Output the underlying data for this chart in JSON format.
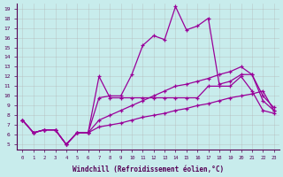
{
  "xlabel": "Windchill (Refroidissement éolien,°C)",
  "background_color": "#c8ecec",
  "grid_color": "#b0b0b0",
  "line_color": "#990099",
  "xlim": [
    -0.5,
    23.5
  ],
  "ylim": [
    4.5,
    19.5
  ],
  "xticks": [
    0,
    1,
    2,
    3,
    4,
    5,
    6,
    7,
    8,
    9,
    10,
    11,
    12,
    13,
    14,
    15,
    16,
    17,
    18,
    19,
    20,
    21,
    22,
    23
  ],
  "yticks": [
    5,
    6,
    7,
    8,
    9,
    10,
    11,
    12,
    13,
    14,
    15,
    16,
    17,
    18,
    19
  ],
  "series1_peak": [
    7.5,
    6.2,
    6.5,
    6.5,
    5.0,
    6.2,
    6.2,
    9.8,
    10.0,
    10.0,
    12.2,
    15.2,
    16.2,
    15.8,
    19.2,
    16.8,
    17.2,
    18.0,
    11.2,
    11.5,
    12.2,
    12.2,
    9.5,
    8.5
  ],
  "series2_mid": [
    7.5,
    6.2,
    6.5,
    6.5,
    5.0,
    6.2,
    6.2,
    12.0,
    9.8,
    9.8,
    9.8,
    9.8,
    9.8,
    9.8,
    9.8,
    9.8,
    9.8,
    11.0,
    11.0,
    11.0,
    12.0,
    10.5,
    8.5,
    8.2
  ],
  "series3_rise": [
    7.5,
    6.2,
    6.5,
    6.5,
    5.0,
    6.2,
    6.2,
    7.5,
    8.0,
    8.5,
    9.0,
    9.5,
    10.0,
    10.5,
    11.0,
    11.2,
    11.5,
    11.8,
    12.2,
    12.5,
    13.0,
    12.2,
    10.0,
    8.8
  ],
  "series4_flat": [
    7.5,
    6.2,
    6.5,
    6.5,
    5.0,
    6.2,
    6.2,
    6.8,
    7.0,
    7.2,
    7.5,
    7.8,
    8.0,
    8.2,
    8.5,
    8.7,
    9.0,
    9.2,
    9.5,
    9.8,
    10.0,
    10.2,
    10.5,
    8.5
  ]
}
